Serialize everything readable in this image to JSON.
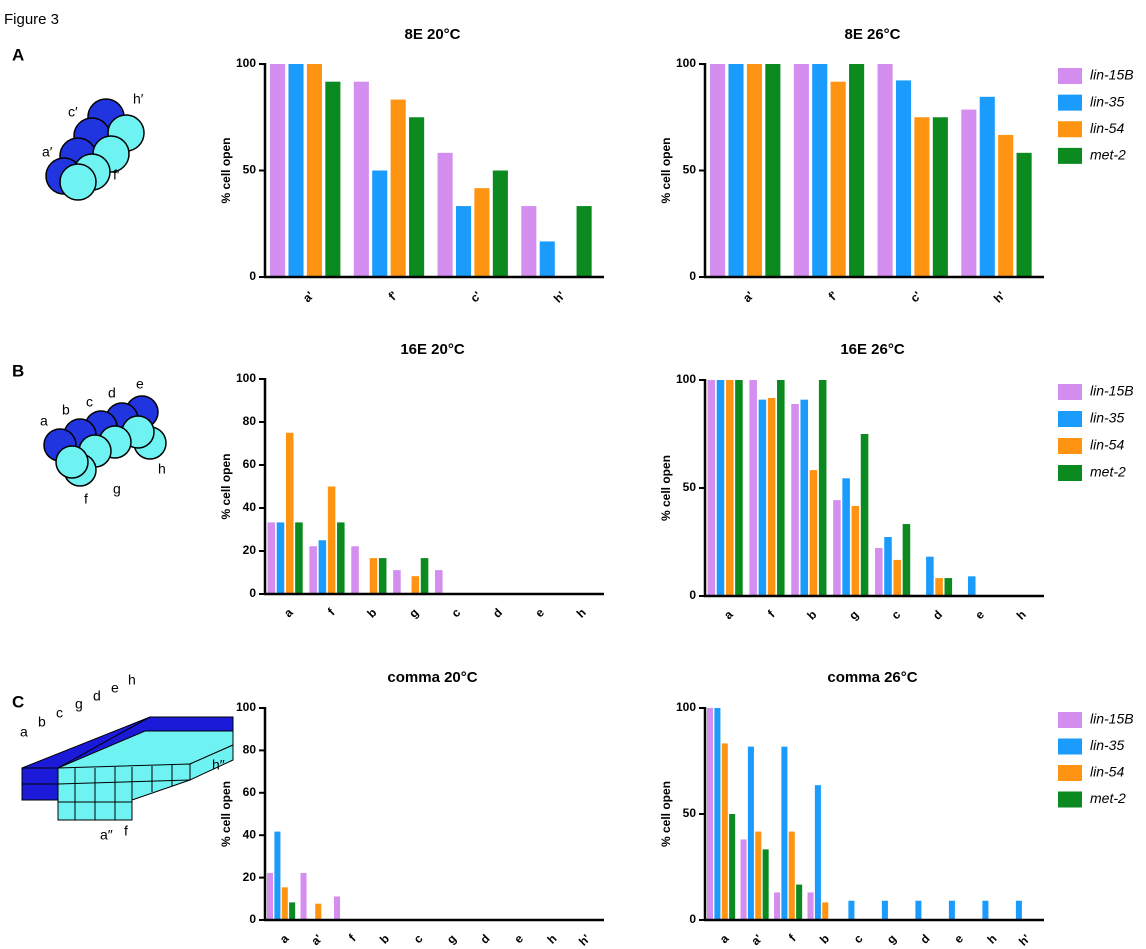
{
  "figure": {
    "title": "Figure 3",
    "panels": [
      {
        "letter": "A",
        "labels": [
          "c′",
          "h′",
          "a′",
          "f′"
        ]
      },
      {
        "letter": "B",
        "labels": [
          "a",
          "b",
          "c",
          "d",
          "e",
          "f",
          "g",
          "h"
        ]
      },
      {
        "letter": "C",
        "labels": [
          "a",
          "b",
          "c",
          "g",
          "d",
          "e",
          "h",
          "h″",
          "a″",
          "f"
        ]
      }
    ]
  },
  "chart_data": [
    {
      "type": "bar",
      "title": "8E 20°C",
      "y_label": "% cell open",
      "categories": [
        "a'",
        "f'",
        "c'",
        "h'"
      ],
      "ylim": [
        0,
        100
      ],
      "yticks": [
        0,
        50,
        100
      ],
      "legend": false,
      "series": [
        {
          "name": "lin-15B",
          "color": "#d38ef0",
          "values": [
            100,
            91.7,
            58.3,
            33.3
          ]
        },
        {
          "name": "lin-35",
          "color": "#1b9cfc",
          "values": [
            100,
            50,
            33.3,
            16.7
          ]
        },
        {
          "name": "lin-54",
          "color": "#ff9412",
          "values": [
            100,
            83.3,
            41.7,
            0
          ]
        },
        {
          "name": "met-2",
          "color": "#0b8a1f",
          "values": [
            91.7,
            75,
            50,
            33.3
          ]
        }
      ]
    },
    {
      "type": "bar",
      "title": "8E 26°C",
      "y_label": "% cell open",
      "categories": [
        "a'",
        "f'",
        "c'",
        "h'"
      ],
      "ylim": [
        0,
        100
      ],
      "yticks": [
        0,
        50,
        100
      ],
      "legend": "right",
      "series": [
        {
          "name": "lin-15B",
          "color": "#d38ef0",
          "values": [
            100,
            100,
            100,
            78.6
          ]
        },
        {
          "name": "lin-35",
          "color": "#1b9cfc",
          "values": [
            100,
            100,
            92.3,
            84.6
          ]
        },
        {
          "name": "lin-54",
          "color": "#ff9412",
          "values": [
            100,
            91.7,
            75,
            66.7
          ]
        },
        {
          "name": "met-2",
          "color": "#0b8a1f",
          "values": [
            100,
            100,
            75,
            58.3
          ]
        }
      ]
    },
    {
      "type": "bar",
      "title": "16E 20°C",
      "y_label": "% cell open",
      "categories": [
        "a",
        "f",
        "b",
        "g",
        "c",
        "d",
        "e",
        "h"
      ],
      "ylim": [
        0,
        100
      ],
      "yticks": [
        0,
        20,
        40,
        60,
        80,
        100
      ],
      "legend": false,
      "series": [
        {
          "name": "lin-15B",
          "color": "#d38ef0",
          "values": [
            33.3,
            22.2,
            22.2,
            11.1,
            11.1,
            0,
            0,
            0
          ]
        },
        {
          "name": "lin-35",
          "color": "#1b9cfc",
          "values": [
            33.3,
            25,
            0,
            0,
            0,
            0,
            0,
            0
          ]
        },
        {
          "name": "lin-54",
          "color": "#ff9412",
          "values": [
            75,
            50,
            16.7,
            8.3,
            0,
            0,
            0,
            0
          ]
        },
        {
          "name": "met-2",
          "color": "#0b8a1f",
          "values": [
            33.3,
            33.3,
            16.7,
            16.7,
            0,
            0,
            0,
            0
          ]
        }
      ]
    },
    {
      "type": "bar",
      "title": "16E 26°C",
      "y_label": "% cell open",
      "categories": [
        "a",
        "f",
        "b",
        "g",
        "c",
        "d",
        "e",
        "h"
      ],
      "ylim": [
        0,
        100
      ],
      "yticks": [
        0,
        50,
        100
      ],
      "legend": "right",
      "series": [
        {
          "name": "lin-15B",
          "color": "#d38ef0",
          "values": [
            100,
            100,
            88.9,
            44.4,
            22.2,
            0,
            0,
            0
          ]
        },
        {
          "name": "lin-35",
          "color": "#1b9cfc",
          "values": [
            100,
            90.9,
            90.9,
            54.5,
            27.3,
            18.2,
            9.1,
            0
          ]
        },
        {
          "name": "lin-54",
          "color": "#ff9412",
          "values": [
            100,
            91.7,
            58.3,
            41.7,
            16.7,
            8.3,
            0,
            0
          ]
        },
        {
          "name": "met-2",
          "color": "#0b8a1f",
          "values": [
            100,
            100,
            100,
            75,
            33.3,
            8.3,
            0,
            0
          ]
        }
      ]
    },
    {
      "type": "bar",
      "title": "comma 20°C",
      "y_label": "% cell open",
      "categories": [
        "a",
        "a'",
        "f",
        "b",
        "c",
        "g",
        "d",
        "e",
        "h",
        "h'"
      ],
      "ylim": [
        0,
        100
      ],
      "yticks": [
        0,
        20,
        40,
        60,
        80,
        100
      ],
      "legend": false,
      "series": [
        {
          "name": "lin-15B",
          "color": "#d38ef0",
          "values": [
            22.2,
            22.2,
            11.1,
            0,
            0,
            0,
            0,
            0,
            0,
            0
          ]
        },
        {
          "name": "lin-35",
          "color": "#1b9cfc",
          "values": [
            41.7,
            0,
            0,
            0,
            0,
            0,
            0,
            0,
            0,
            0
          ]
        },
        {
          "name": "lin-54",
          "color": "#ff9412",
          "values": [
            15.4,
            7.7,
            0,
            0,
            0,
            0,
            0,
            0,
            0,
            0
          ]
        },
        {
          "name": "met-2",
          "color": "#0b8a1f",
          "values": [
            8.3,
            0,
            0,
            0,
            0,
            0,
            0,
            0,
            0,
            0
          ]
        }
      ]
    },
    {
      "type": "bar",
      "title": "comma 26°C",
      "y_label": "% cell open",
      "categories": [
        "a",
        "a'",
        "f",
        "b",
        "c",
        "g",
        "d",
        "e",
        "h",
        "h'"
      ],
      "ylim": [
        0,
        100
      ],
      "yticks": [
        0,
        50,
        100
      ],
      "legend": "right",
      "series": [
        {
          "name": "lin-15B",
          "color": "#d38ef0",
          "values": [
            100,
            38,
            13,
            13,
            0,
            0,
            0,
            0,
            0,
            0
          ]
        },
        {
          "name": "lin-35",
          "color": "#1b9cfc",
          "values": [
            100,
            81.8,
            81.8,
            63.6,
            9.1,
            9.1,
            9.1,
            9.1,
            9.1,
            9.1
          ]
        },
        {
          "name": "lin-54",
          "color": "#ff9412",
          "values": [
            83.3,
            41.7,
            41.7,
            8.3,
            0,
            0,
            0,
            0,
            0,
            0
          ]
        },
        {
          "name": "met-2",
          "color": "#0b8a1f",
          "values": [
            50,
            33.3,
            16.7,
            0,
            0,
            0,
            0,
            0,
            0,
            0
          ]
        }
      ]
    }
  ]
}
